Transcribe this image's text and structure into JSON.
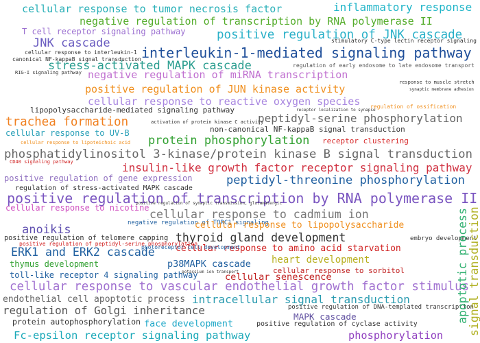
{
  "words": [
    {
      "text": "cellular response to tumor necrosis factor",
      "color": "#2ab0b8"
    },
    {
      "text": "inflammatory response",
      "color": "#20b5c8"
    },
    {
      "text": "negative regulation of transcription by RNA polymerase II",
      "color": "#55ad2c"
    },
    {
      "text": "T cell receptor signaling pathway",
      "color": "#9b6fd0"
    },
    {
      "text": "positive regulation of JNK cascade",
      "color": "#29b0c8"
    },
    {
      "text": "JNK cascade",
      "color": "#6a5cc0"
    },
    {
      "text": "cellular response to interleukin-1",
      "color": "#333333"
    },
    {
      "text": "canonical NF-kappaB signal transduction",
      "color": "#333333"
    },
    {
      "text": "interleukin-1-mediated signaling pathway",
      "color": "#1f4f9a"
    },
    {
      "text": "stress-activated MAPK cascade",
      "color": "#2a9d8f"
    },
    {
      "text": "regulation of early endosome to late endosome transport",
      "color": "#555555"
    },
    {
      "text": "negative regulation of miRNA transcription",
      "color": "#c070d0"
    },
    {
      "text": "positive regulation of JUN kinase activity",
      "color": "#f09020"
    },
    {
      "text": "cellular response to reactive oxygen species",
      "color": "#a886e0"
    },
    {
      "text": "lipopolysaccharide-mediated signaling pathway",
      "color": "#333333"
    },
    {
      "text": "peptidyl-serine phosphorylation",
      "color": "#666666"
    },
    {
      "text": "trachea formation",
      "color": "#f08020"
    },
    {
      "text": "non-canonical NF-kappaB signal transduction",
      "color": "#333333"
    },
    {
      "text": "receptor clustering",
      "color": "#d62728"
    },
    {
      "text": "cellular response to UV-B",
      "color": "#2aa0b8"
    },
    {
      "text": "protein phosphorylation",
      "color": "#30a030"
    },
    {
      "text": "phosphatidylinositol 3-kinase/protein kinase B signal transduction",
      "color": "#666666"
    },
    {
      "text": "insulin-like growth factor receptor signaling pathway",
      "color": "#d03040"
    },
    {
      "text": "positive regulation of gene expression",
      "color": "#9070c0"
    },
    {
      "text": "peptidyl-threonine phosphorylation",
      "color": "#1f5fa0"
    },
    {
      "text": "regulation of stress-activated MAPK cascade",
      "color": "#333333"
    },
    {
      "text": "positive regulation of transcription by RNA polymerase II",
      "color": "#7a55c0"
    },
    {
      "text": "cellular response to nicotine",
      "color": "#d050c0"
    },
    {
      "text": "cellular response to cadmium ion",
      "color": "#777777"
    },
    {
      "text": "negative regulation of TORC1 signaling",
      "color": "#2060a0"
    },
    {
      "text": "anoikis",
      "color": "#6050b0"
    },
    {
      "text": "cellular response to lipopolysaccharide",
      "color": "#f09020"
    },
    {
      "text": "positive regulation of telomere capping",
      "color": "#333333"
    },
    {
      "text": "thyroid gland development",
      "color": "#333333"
    },
    {
      "text": "embryo development",
      "color": "#333333"
    },
    {
      "text": "positive regulation of peptidyl-serine phosphorylation",
      "color": "#d02020"
    },
    {
      "text": "cellular response to amino acid starvation",
      "color": "#d02020"
    },
    {
      "text": "ERK1 and ERK2 cascade",
      "color": "#2060a0"
    },
    {
      "text": "thymus development",
      "color": "#30a030"
    },
    {
      "text": "p38MAPK cascade",
      "color": "#1f5f9f"
    },
    {
      "text": "heart development",
      "color": "#b8b020"
    },
    {
      "text": "toll-like receptor 4 signaling pathway",
      "color": "#2060a0"
    },
    {
      "text": "cellular senescence",
      "color": "#c02020"
    },
    {
      "text": "cellular response to sorbitol",
      "color": "#c02020"
    },
    {
      "text": "cellular response to vascular endothelial growth factor stimulus",
      "color": "#a070d0"
    },
    {
      "text": "endothelial cell apoptotic process",
      "color": "#666666"
    },
    {
      "text": "intracellular signal transduction",
      "color": "#2a9bb0"
    },
    {
      "text": "regulation of Golgi inheritance",
      "color": "#555555"
    },
    {
      "text": "positive regulation of DNA-templated transcription",
      "color": "#333333"
    },
    {
      "text": "protein autophosphorylation",
      "color": "#333333"
    },
    {
      "text": "face development",
      "color": "#20a8c8"
    },
    {
      "text": "MAPK cascade",
      "color": "#6050a0"
    },
    {
      "text": "positive regulation of cyclase activity",
      "color": "#333333"
    },
    {
      "text": "Fc-epsilon receptor signaling pathway",
      "color": "#1aa8b8"
    },
    {
      "text": "phosphorylation",
      "color": "#9040c0"
    },
    {
      "text": "signal transduction",
      "color": "#b0b020"
    },
    {
      "text": "apoptotic process",
      "color": "#30b070"
    },
    {
      "text": "RIG-I signaling pathway",
      "color": "#333333"
    },
    {
      "text": "stimulatory C-type lectin receptor signaling pathway",
      "color": "#333333"
    },
    {
      "text": "regulation of ossification",
      "color": "#f09020"
    },
    {
      "text": "activation of protein kinase C activity",
      "color": "#333333"
    },
    {
      "text": "cellular response to lipoteichoic acid",
      "color": "#f09020"
    },
    {
      "text": "CD40 signaling pathway",
      "color": "#d02020"
    },
    {
      "text": "positive regulation of synaptic transmission, glutamatergic",
      "color": "#333333"
    },
    {
      "text": "photoreceptor cell development",
      "color": "#2060a0"
    },
    {
      "text": "response to muscle stretch",
      "color": "#333333"
    },
    {
      "text": "synaptic membrane adhesion",
      "color": "#333333"
    },
    {
      "text": "receptor localization to synapse",
      "color": "#333333"
    },
    {
      "text": "potassium ion transport",
      "color": "#333333"
    }
  ]
}
